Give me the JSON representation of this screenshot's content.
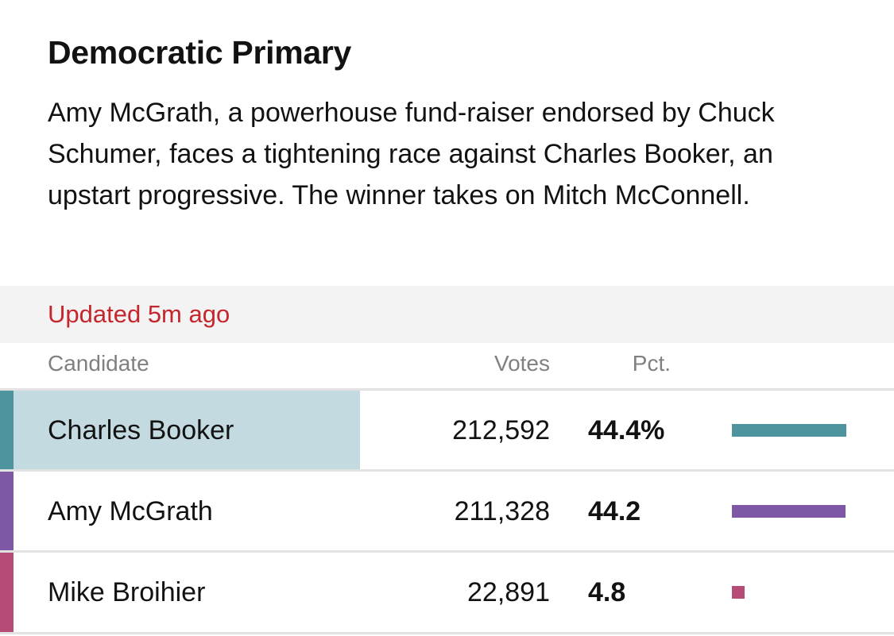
{
  "title": "Democratic Primary",
  "description": "Amy McGrath, a powerhouse fund-raiser endorsed by Chuck Schumer, faces a tightening race against Charles Booker, an upstart progressive. The winner takes on Mitch McConnell.",
  "status": {
    "updated": "Updated 5m ago",
    "color": "#c5262d"
  },
  "table": {
    "headers": {
      "candidate": "Candidate",
      "votes": "Votes",
      "pct": "Pct."
    },
    "rows": [
      {
        "name": "Charles Booker",
        "votes": "212,592",
        "pct": "44.4%",
        "pct_value": 44.4,
        "color": "#4e949f",
        "leader": true
      },
      {
        "name": "Amy McGrath",
        "votes": "211,328",
        "pct": "44.2",
        "pct_value": 44.2,
        "color": "#7f58a5",
        "leader": false
      },
      {
        "name": "Mike Broihier",
        "votes": "22,891",
        "pct": "4.8",
        "pct_value": 4.8,
        "color": "#b64b78",
        "leader": false
      }
    ]
  }
}
